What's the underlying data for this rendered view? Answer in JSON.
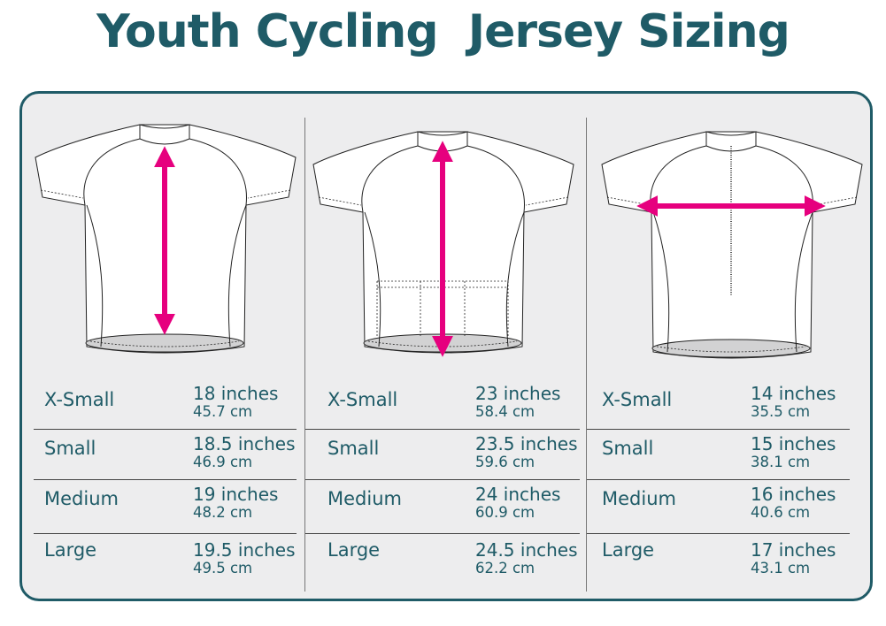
{
  "title": "Youth Cycling  Jersey Sizing",
  "colors": {
    "brand": "#1f5b67",
    "arrow": "#e6007e",
    "panel": "#ededee"
  },
  "columns": [
    {
      "view": "front",
      "measurement_arrow": "vertical",
      "rows": [
        {
          "size": "X-Small",
          "inches": "18 inches",
          "cm": "45.7 cm"
        },
        {
          "size": "Small",
          "inches": "18.5 inches",
          "cm": "46.9 cm"
        },
        {
          "size": "Medium",
          "inches": "19 inches",
          "cm": "48.2 cm"
        },
        {
          "size": "Large",
          "inches": "19.5 inches",
          "cm": "49.5 cm"
        }
      ]
    },
    {
      "view": "back",
      "measurement_arrow": "vertical",
      "rows": [
        {
          "size": "X-Small",
          "inches": "23 inches",
          "cm": "58.4 cm"
        },
        {
          "size": "Small",
          "inches": "23.5 inches",
          "cm": "59.6 cm"
        },
        {
          "size": "Medium",
          "inches": "24 inches",
          "cm": "60.9 cm"
        },
        {
          "size": "Large",
          "inches": "24.5 inches",
          "cm": "62.2 cm"
        }
      ]
    },
    {
      "view": "front",
      "measurement_arrow": "horizontal",
      "rows": [
        {
          "size": "X-Small",
          "inches": "14 inches",
          "cm": "35.5 cm"
        },
        {
          "size": "Small",
          "inches": "15 inches",
          "cm": "38.1 cm"
        },
        {
          "size": "Medium",
          "inches": "16 inches",
          "cm": "40.6 cm"
        },
        {
          "size": "Large",
          "inches": "17 inches",
          "cm": "43.1 cm"
        }
      ]
    }
  ]
}
